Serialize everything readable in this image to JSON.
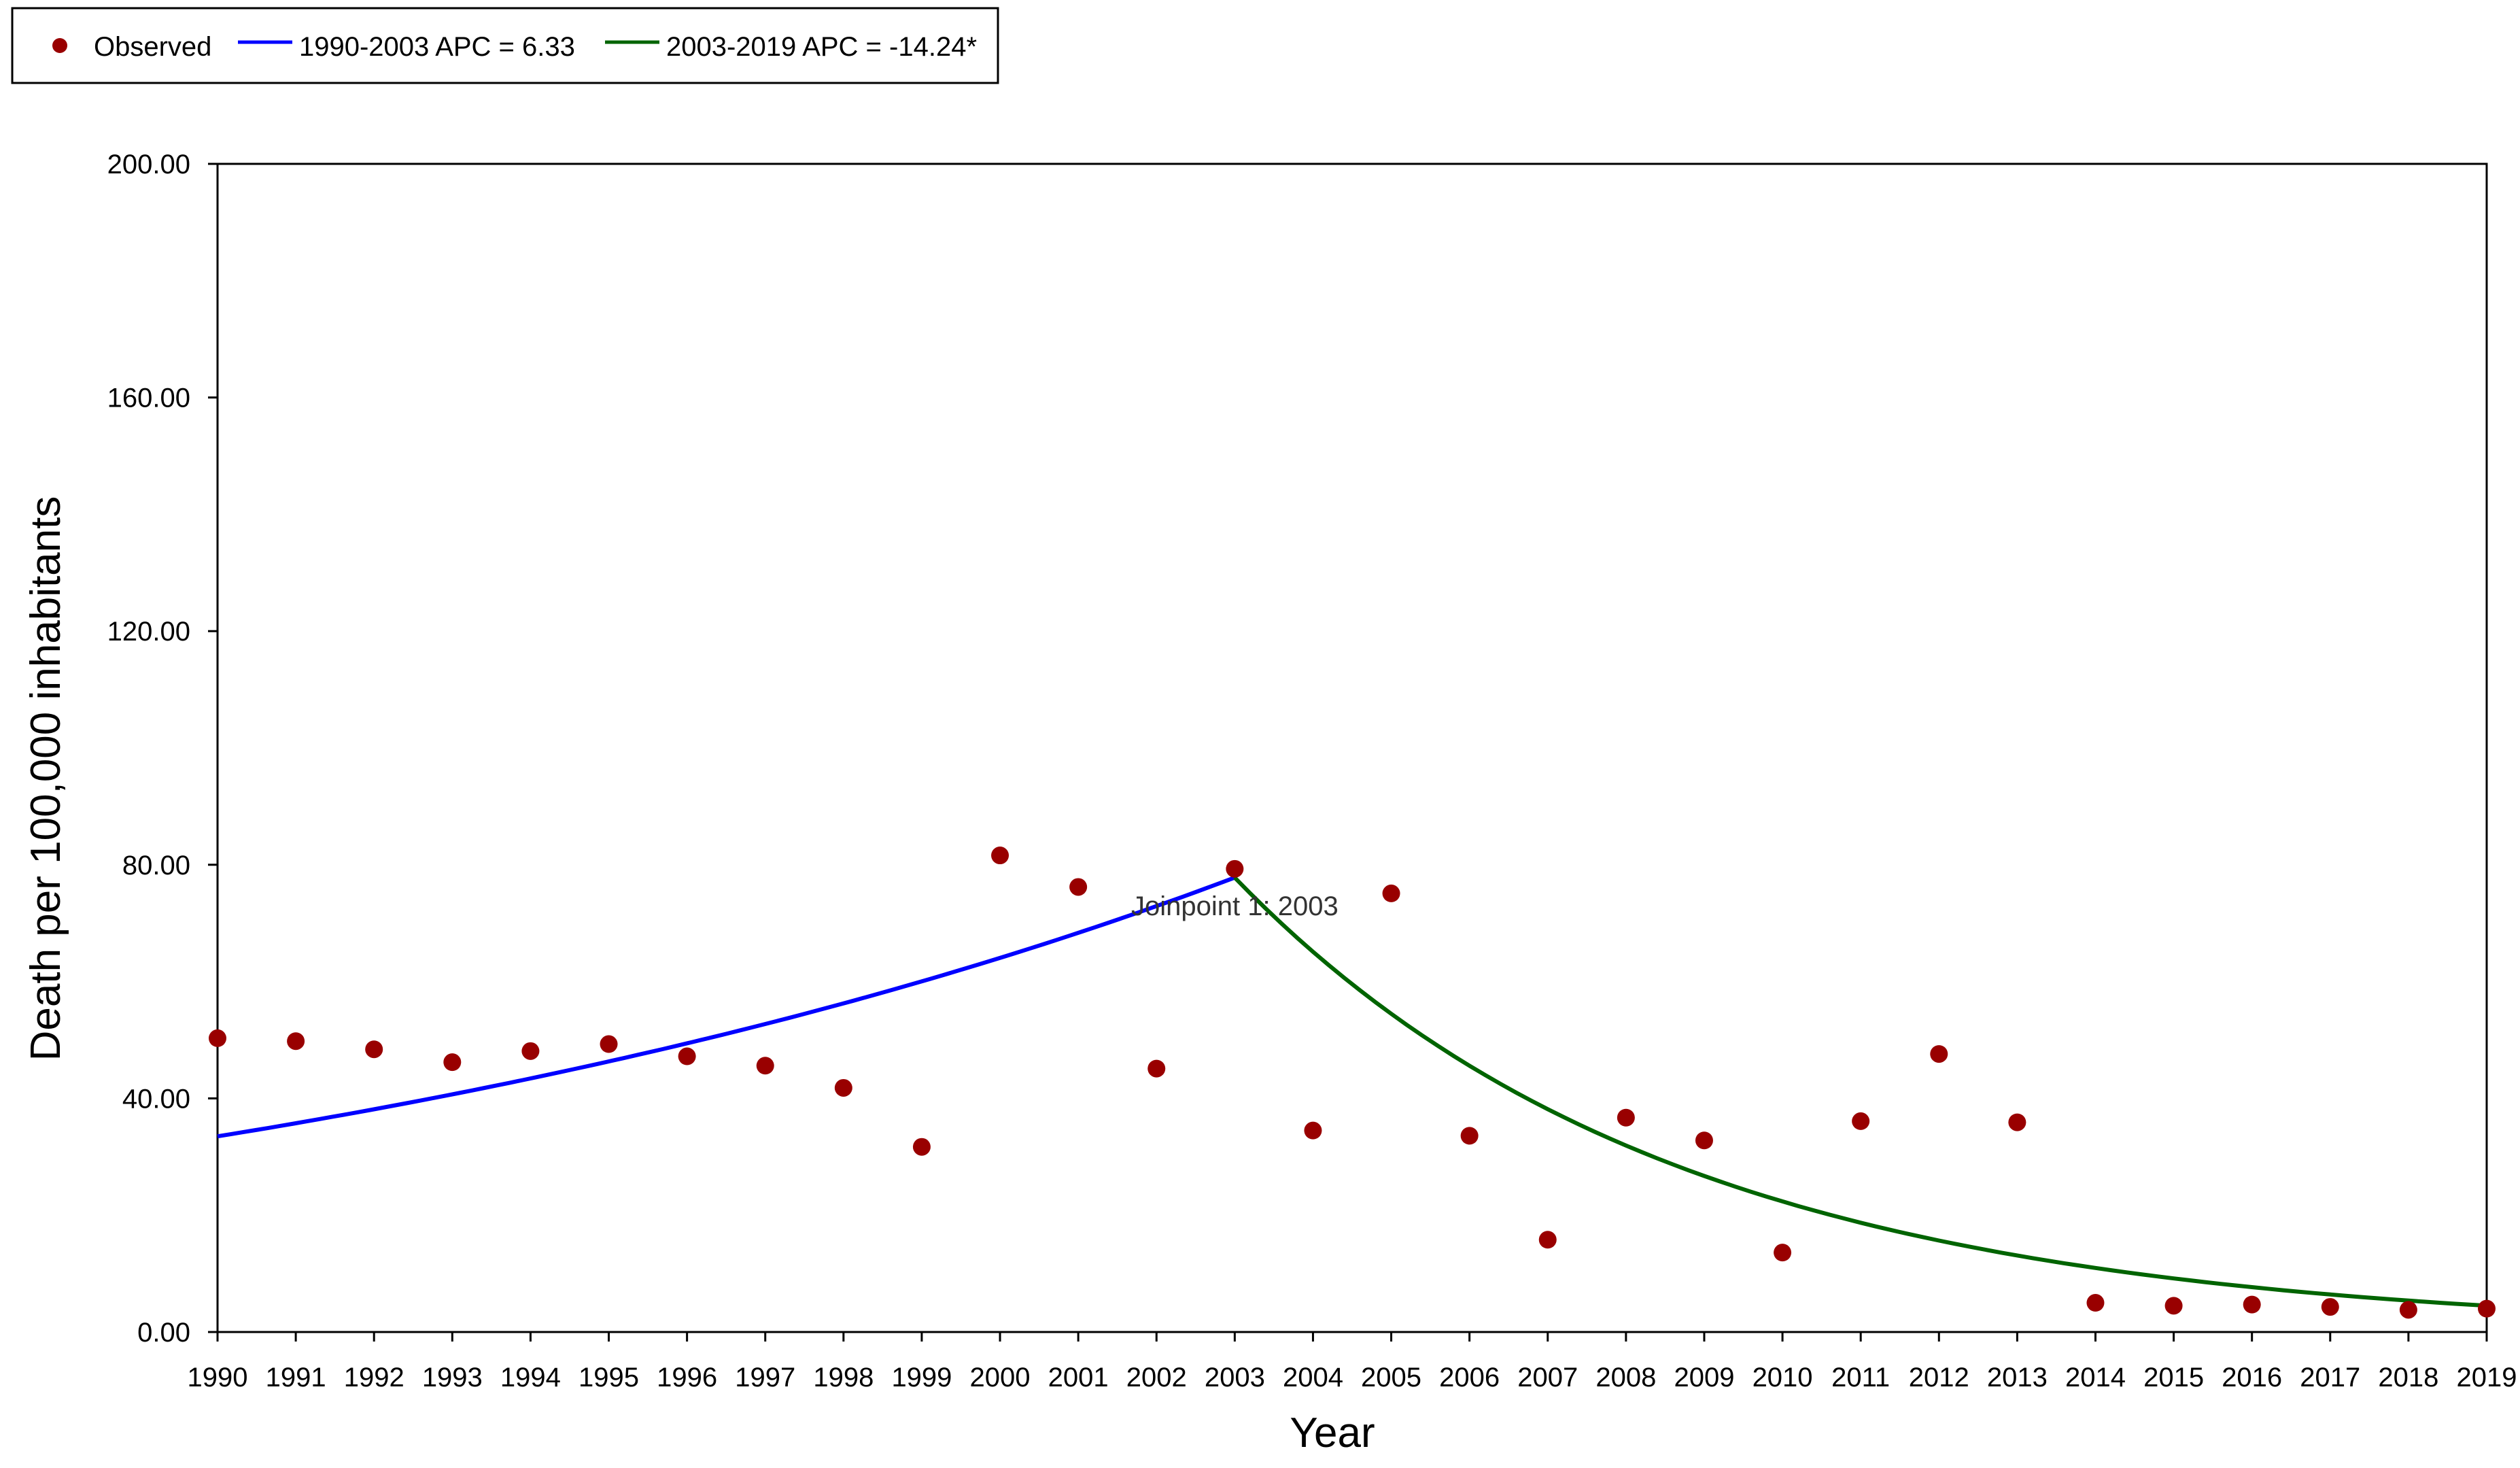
{
  "chart_data": {
    "type": "scatter",
    "title": "",
    "xlabel": "Year",
    "ylabel": "Death per 100,000 inhabitants",
    "xlim": [
      1990,
      2019
    ],
    "ylim": [
      0,
      200
    ],
    "y_ticks": [
      "0.00",
      "40.00",
      "80.00",
      "120.00",
      "160.00",
      "200.00"
    ],
    "x_ticks": [
      "1990",
      "1991",
      "1992",
      "1993",
      "1994",
      "1995",
      "1996",
      "1997",
      "1998",
      "1999",
      "2000",
      "2001",
      "2002",
      "2003",
      "2004",
      "2005",
      "2006",
      "2007",
      "2008",
      "2009",
      "2010",
      "2011",
      "2012",
      "2013",
      "2014",
      "2015",
      "2016",
      "2017",
      "2018",
      "2019"
    ],
    "grid": false,
    "legend_position": "top-left",
    "legend": [
      {
        "label": "Observed",
        "kind": "marker",
        "color": "#990000"
      },
      {
        "label": "1990-2003 APC =  6.33",
        "kind": "line",
        "color": "#0000ff"
      },
      {
        "label": "2003-2019 APC = -14.24*",
        "kind": "line",
        "color": "#006400"
      }
    ],
    "observed": {
      "name": "Observed",
      "color": "#990000",
      "x": [
        1990,
        1991,
        1992,
        1993,
        1994,
        1995,
        1996,
        1997,
        1998,
        1999,
        2000,
        2001,
        2002,
        2003,
        2004,
        2005,
        2006,
        2007,
        2008,
        2009,
        2010,
        2011,
        2012,
        2013,
        2014,
        2015,
        2016,
        2017,
        2018,
        2019
      ],
      "y": [
        50.3,
        49.8,
        48.4,
        46.2,
        48.1,
        49.3,
        47.2,
        45.6,
        41.8,
        31.7,
        81.6,
        76.2,
        45.1,
        79.3,
        34.5,
        75.1,
        33.6,
        15.8,
        36.7,
        32.8,
        13.6,
        36.1,
        47.6,
        35.9,
        5.0,
        4.5,
        4.7,
        4.3,
        3.8,
        4.0
      ]
    },
    "segments": [
      {
        "name": "1990-2003 APC =  6.33",
        "color": "#0000ff",
        "x_start": 1990,
        "x_end": 2003,
        "y_start": 33.5,
        "y_end": 77.8
      },
      {
        "name": "2003-2019 APC = -14.24*",
        "color": "#006400",
        "x_start": 2003,
        "x_end": 2019,
        "y_start": 77.8,
        "y_end": 4.5
      }
    ],
    "annotations": [
      {
        "text": "Joinpoint 1: 2003",
        "x": 2003,
        "y": 73
      }
    ]
  }
}
